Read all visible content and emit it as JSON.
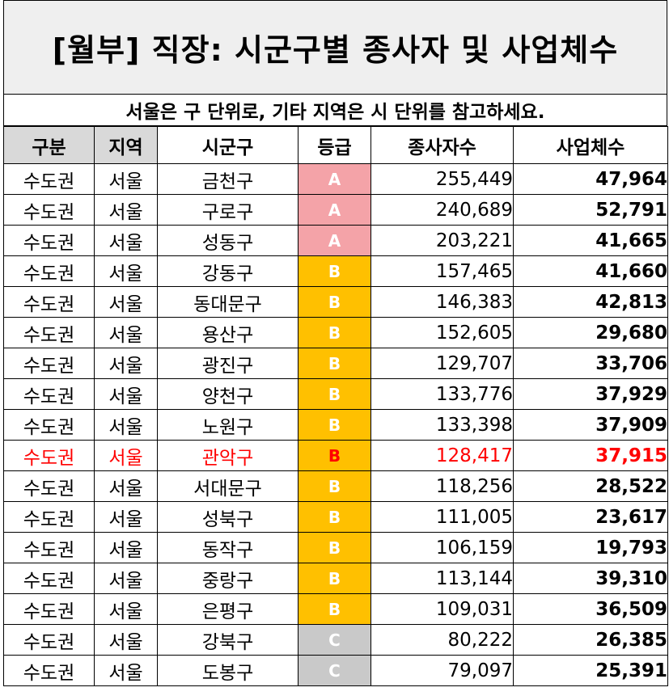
{
  "title": "[월부] 직장: 시군구별 종사자 및 사업체수",
  "subtitle": "서울은 구 단위로, 기타 지역은 시 단위를 참고하세요.",
  "headers": {
    "category": "구분",
    "region": "지역",
    "district": "시군구",
    "grade": "등급",
    "employees": "종사자수",
    "businesses": "사업체수"
  },
  "grade_colors": {
    "A": "#f4a3a8",
    "B": "#ffc000",
    "C": "#c9c9c9"
  },
  "highlight_color": "#ff0000",
  "rows": [
    {
      "category": "수도권",
      "region": "서울",
      "district": "금천구",
      "grade": "A",
      "employees": "255,449",
      "businesses": "47,964"
    },
    {
      "category": "수도권",
      "region": "서울",
      "district": "구로구",
      "grade": "A",
      "employees": "240,689",
      "businesses": "52,791"
    },
    {
      "category": "수도권",
      "region": "서울",
      "district": "성동구",
      "grade": "A",
      "employees": "203,221",
      "businesses": "41,665"
    },
    {
      "category": "수도권",
      "region": "서울",
      "district": "강동구",
      "grade": "B",
      "employees": "157,465",
      "businesses": "41,660"
    },
    {
      "category": "수도권",
      "region": "서울",
      "district": "동대문구",
      "grade": "B",
      "employees": "146,383",
      "businesses": "42,813"
    },
    {
      "category": "수도권",
      "region": "서울",
      "district": "용산구",
      "grade": "B",
      "employees": "152,605",
      "businesses": "29,680"
    },
    {
      "category": "수도권",
      "region": "서울",
      "district": "광진구",
      "grade": "B",
      "employees": "129,707",
      "businesses": "33,706"
    },
    {
      "category": "수도권",
      "region": "서울",
      "district": "양천구",
      "grade": "B",
      "employees": "133,776",
      "businesses": "37,929"
    },
    {
      "category": "수도권",
      "region": "서울",
      "district": "노원구",
      "grade": "B",
      "employees": "133,398",
      "businesses": "37,909"
    },
    {
      "category": "수도권",
      "region": "서울",
      "district": "관악구",
      "grade": "B",
      "employees": "128,417",
      "businesses": "37,915",
      "highlight": true
    },
    {
      "category": "수도권",
      "region": "서울",
      "district": "서대문구",
      "grade": "B",
      "employees": "118,256",
      "businesses": "28,522"
    },
    {
      "category": "수도권",
      "region": "서울",
      "district": "성북구",
      "grade": "B",
      "employees": "111,005",
      "businesses": "23,617"
    },
    {
      "category": "수도권",
      "region": "서울",
      "district": "동작구",
      "grade": "B",
      "employees": "106,159",
      "businesses": "19,793"
    },
    {
      "category": "수도권",
      "region": "서울",
      "district": "중랑구",
      "grade": "B",
      "employees": "113,144",
      "businesses": "39,310"
    },
    {
      "category": "수도권",
      "region": "서울",
      "district": "은평구",
      "grade": "B",
      "employees": "109,031",
      "businesses": "36,509"
    },
    {
      "category": "수도권",
      "region": "서울",
      "district": "강북구",
      "grade": "C",
      "employees": "80,222",
      "businesses": "26,385"
    },
    {
      "category": "수도권",
      "region": "서울",
      "district": "도봉구",
      "grade": "C",
      "employees": "79,097",
      "businesses": "25,391"
    }
  ]
}
